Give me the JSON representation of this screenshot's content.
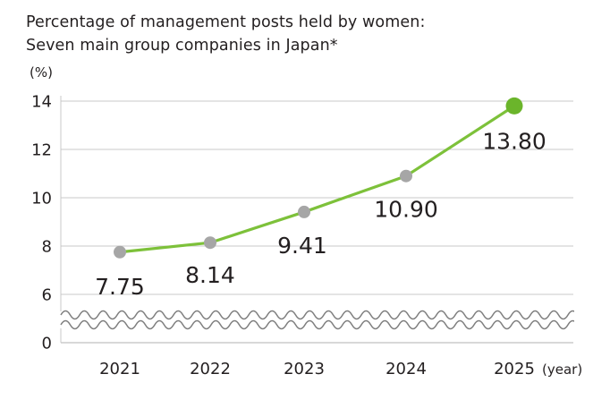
{
  "title_lines": [
    "Percentage of management posts held by women:",
    "Seven main group companies in Japan*"
  ],
  "chart_data": {
    "type": "line",
    "title": "Percentage of management posts held by women: Seven main group companies in Japan*",
    "y_unit": "(%)",
    "x_unit": "(year)",
    "categories": [
      "2021",
      "2022",
      "2023",
      "2024",
      "2025"
    ],
    "series": [
      {
        "values": [
          7.75,
          8.14,
          9.41,
          10.9,
          13.8
        ],
        "labels": [
          "7.75",
          "8.14",
          "9.41",
          "10.90",
          "13.80"
        ]
      }
    ],
    "y_ticks": [
      "0",
      "6",
      "8",
      "10",
      "12",
      "14"
    ],
    "ylim": [
      6,
      14
    ],
    "axis_break": "between 0 and 6",
    "grid": true,
    "colors": {
      "line": "#7dc13a",
      "point": "#a6a6a6",
      "highlight_point": "#6bb52b",
      "grid": "#c8c8c8",
      "break_wave": "#7f7f7f"
    }
  }
}
